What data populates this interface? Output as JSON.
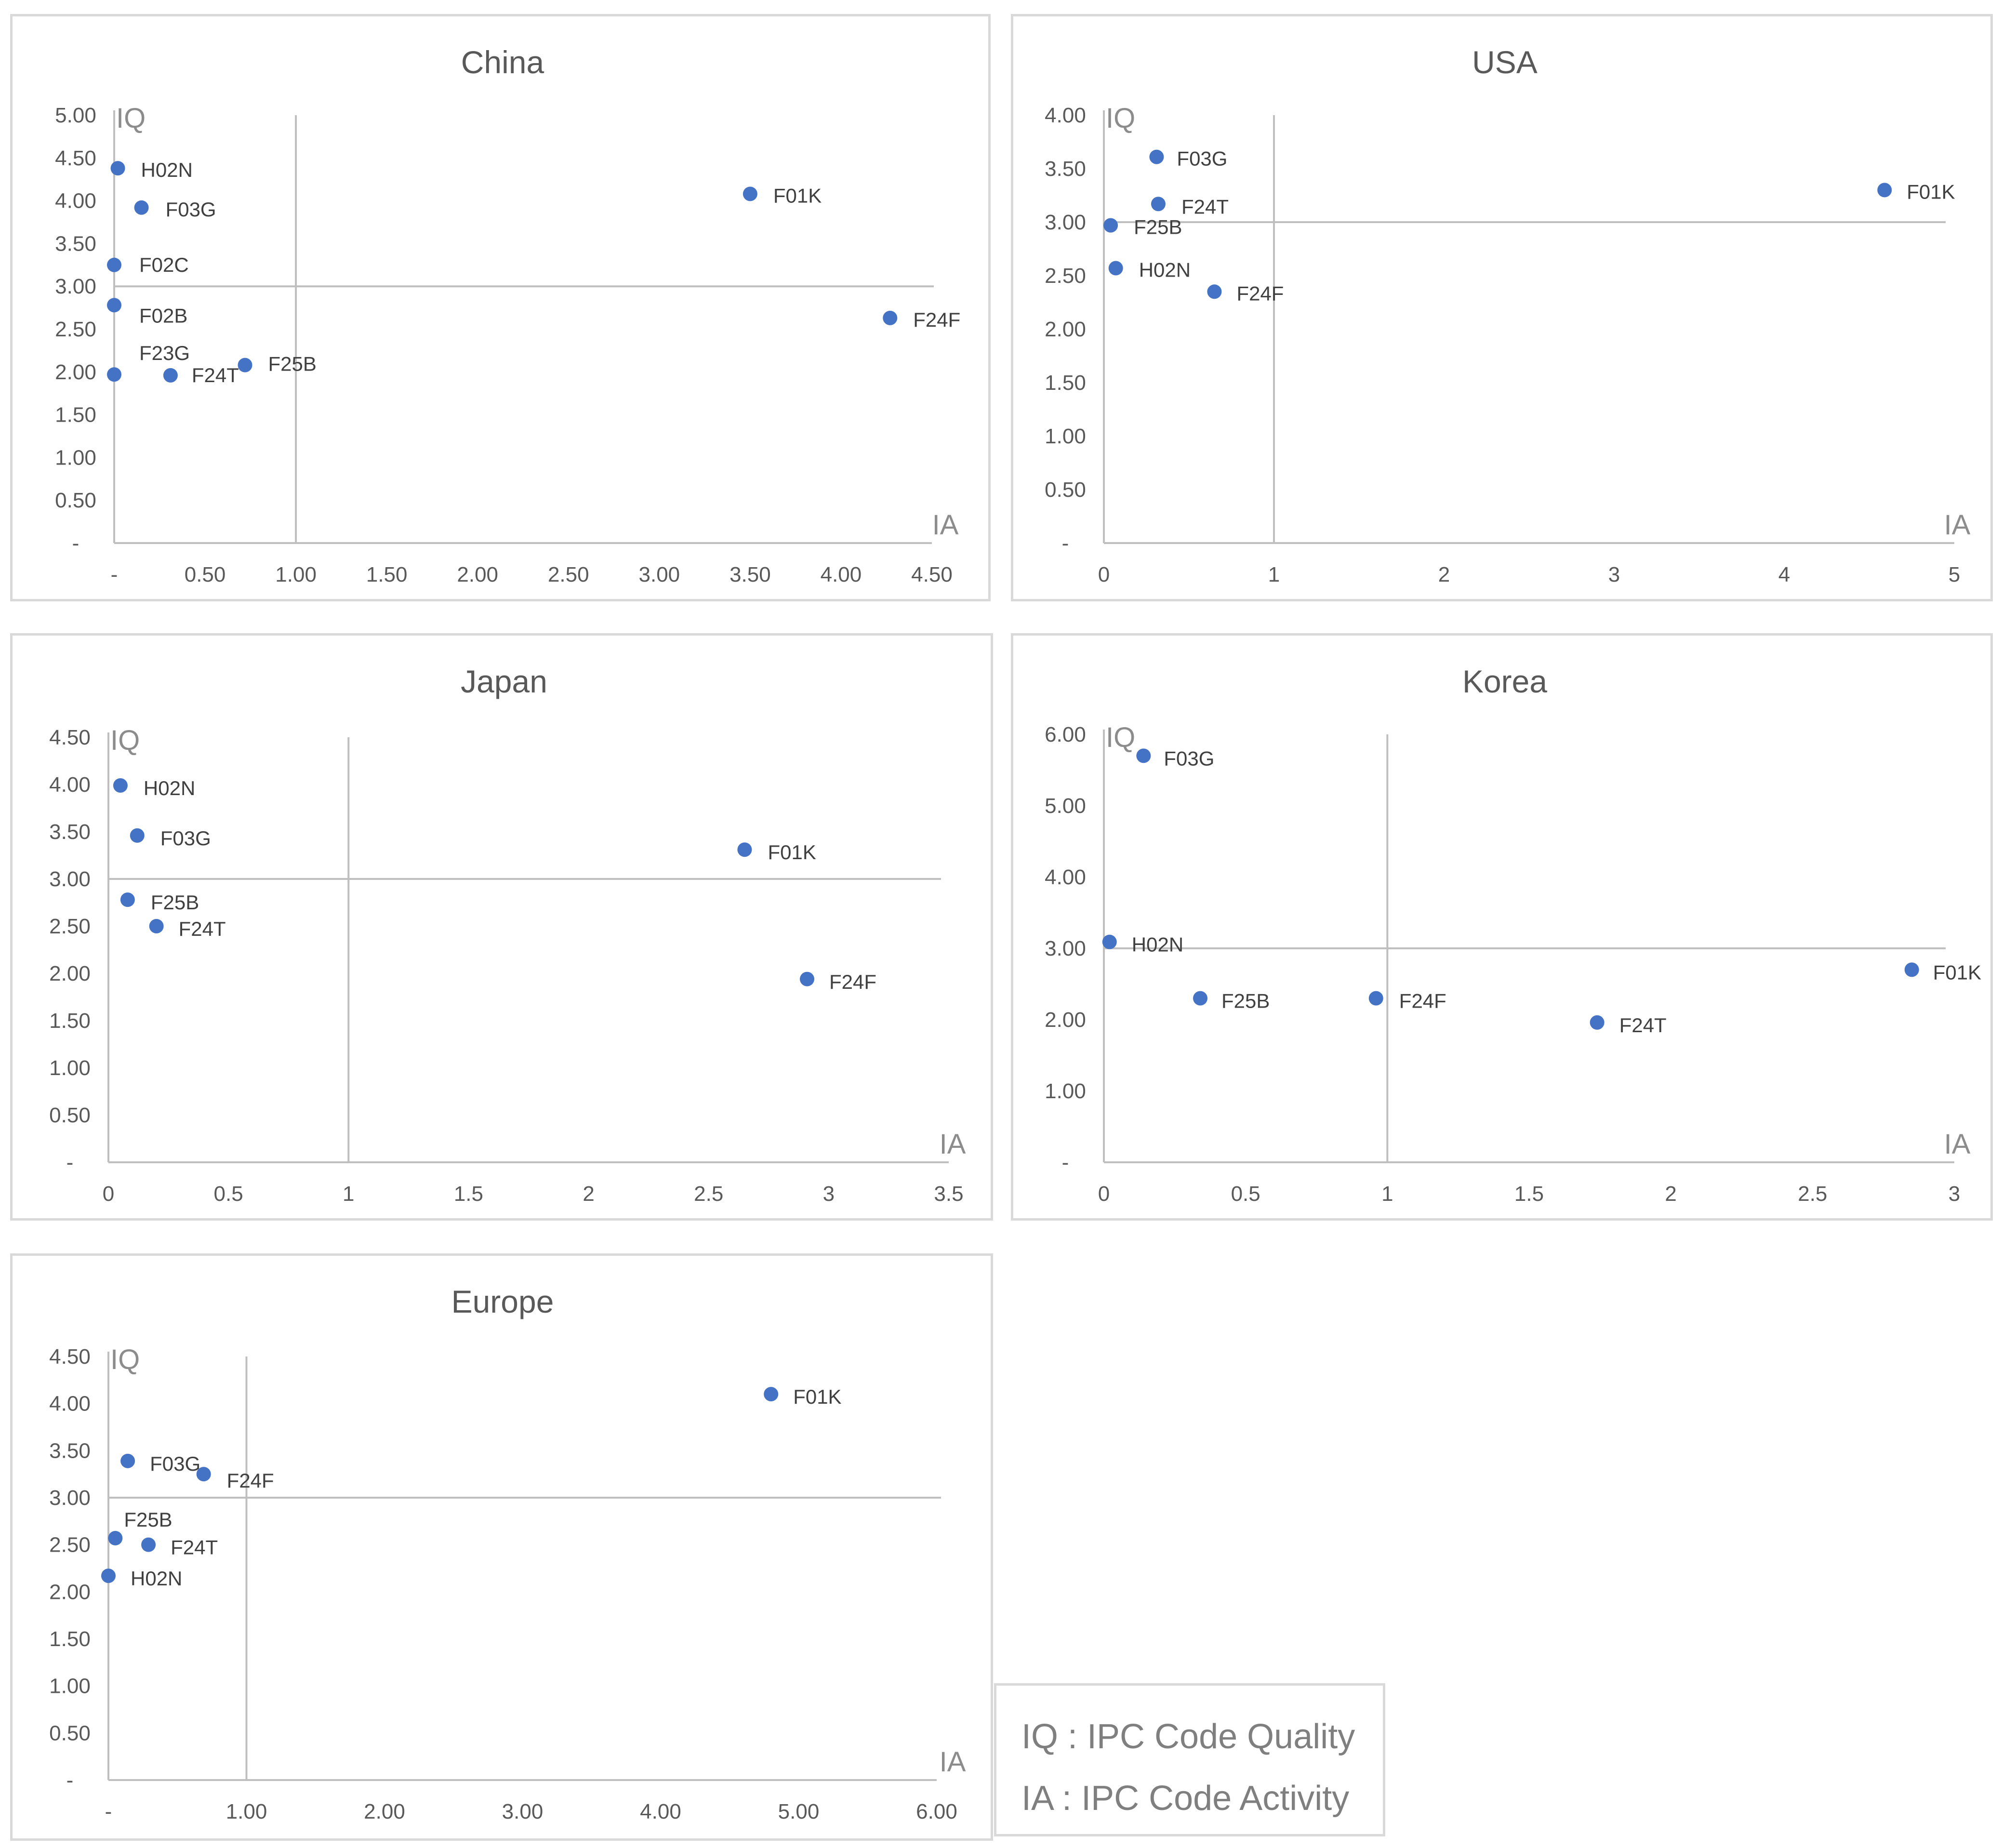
{
  "chart_data": [
    {
      "type": "scatter",
      "title": "China",
      "xlabel": "IA",
      "ylabel": "IQ",
      "xlim": [
        0,
        4.5
      ],
      "ylim": [
        0,
        5
      ],
      "x_ticks": [
        "-",
        "0.50",
        "1.00",
        "1.50",
        "2.00",
        "2.50",
        "3.00",
        "3.50",
        "4.00",
        "4.50"
      ],
      "y_ticks": [
        "-",
        "0.50",
        "1.00",
        "1.50",
        "2.00",
        "2.50",
        "3.00",
        "3.50",
        "4.00",
        "4.50",
        "5.00"
      ],
      "ref_x": 1,
      "ref_y": 3,
      "points": [
        {
          "label": "H02N",
          "x": 0.02,
          "y": 4.38
        },
        {
          "label": "F03G",
          "x": 0.15,
          "y": 3.92
        },
        {
          "label": "F02C",
          "x": 0.0,
          "y": 3.25
        },
        {
          "label": "F02B",
          "x": 0.0,
          "y": 2.78
        },
        {
          "label": "F23G",
          "x": 0.0,
          "y": 1.97
        },
        {
          "label": "F24T",
          "x": 0.31,
          "y": 1.96
        },
        {
          "label": "F25B",
          "x": 0.72,
          "y": 2.08
        },
        {
          "label": "F01K",
          "x": 3.5,
          "y": 4.08
        },
        {
          "label": "F24F",
          "x": 4.27,
          "y": 2.63
        }
      ]
    },
    {
      "type": "scatter",
      "title": "USA",
      "xlabel": "IA",
      "ylabel": "IQ",
      "xlim": [
        0,
        5
      ],
      "ylim": [
        0,
        4
      ],
      "x_ticks": [
        "0",
        "1",
        "2",
        "3",
        "4",
        "5"
      ],
      "y_ticks": [
        "-",
        "0.50",
        "1.00",
        "1.50",
        "2.00",
        "2.50",
        "3.00",
        "3.50",
        "4.00"
      ],
      "ref_x": 1,
      "ref_y": 3,
      "points": [
        {
          "label": "F03G",
          "x": 0.31,
          "y": 3.61
        },
        {
          "label": "F24T",
          "x": 0.32,
          "y": 3.17
        },
        {
          "label": "F25B",
          "x": 0.04,
          "y": 2.97
        },
        {
          "label": "H02N",
          "x": 0.07,
          "y": 2.57
        },
        {
          "label": "F24F",
          "x": 0.65,
          "y": 2.35
        },
        {
          "label": "F01K",
          "x": 4.59,
          "y": 3.3
        }
      ]
    },
    {
      "type": "scatter",
      "title": "Japan",
      "xlabel": "IA",
      "ylabel": "IQ",
      "xlim": [
        0,
        3.5
      ],
      "ylim": [
        0,
        4.5
      ],
      "x_ticks": [
        "0",
        "0.5",
        "1",
        "1.5",
        "2",
        "2.5",
        "3",
        "3.5"
      ],
      "y_ticks": [
        "-",
        "0.50",
        "1.00",
        "1.50",
        "2.00",
        "2.50",
        "3.00",
        "3.50",
        "4.00",
        "4.50"
      ],
      "ref_x": 1,
      "ref_y": 3,
      "points": [
        {
          "label": "H02N",
          "x": 0.05,
          "y": 3.99
        },
        {
          "label": "F03G",
          "x": 0.12,
          "y": 3.46
        },
        {
          "label": "F25B",
          "x": 0.08,
          "y": 2.78
        },
        {
          "label": "F24T",
          "x": 0.2,
          "y": 2.5
        },
        {
          "label": "F01K",
          "x": 2.65,
          "y": 3.31
        },
        {
          "label": "F24F",
          "x": 2.91,
          "y": 1.94
        }
      ]
    },
    {
      "type": "scatter",
      "title": "Korea",
      "xlabel": "IA",
      "ylabel": "IQ",
      "xlim": [
        0,
        3
      ],
      "ylim": [
        0,
        6
      ],
      "x_ticks": [
        "0",
        "0.5",
        "1",
        "1.5",
        "2",
        "2.5",
        "3"
      ],
      "y_ticks": [
        "-",
        "1.00",
        "2.00",
        "3.00",
        "4.00",
        "5.00",
        "6.00"
      ],
      "ref_x": 1,
      "ref_y": 3,
      "points": [
        {
          "label": "F03G",
          "x": 0.14,
          "y": 5.7
        },
        {
          "label": "H02N",
          "x": 0.02,
          "y": 3.09
        },
        {
          "label": "F25B",
          "x": 0.34,
          "y": 2.3
        },
        {
          "label": "F24F",
          "x": 0.96,
          "y": 2.3
        },
        {
          "label": "F24T",
          "x": 1.74,
          "y": 1.96
        },
        {
          "label": "F01K",
          "x": 2.85,
          "y": 2.7
        }
      ]
    },
    {
      "type": "scatter",
      "title": "Europe",
      "xlabel": "IA",
      "ylabel": "IQ",
      "xlim": [
        0,
        6
      ],
      "ylim": [
        0,
        4.5
      ],
      "x_ticks": [
        "-",
        "1.00",
        "2.00",
        "3.00",
        "4.00",
        "5.00",
        "6.00"
      ],
      "y_ticks": [
        "-",
        "0.50",
        "1.00",
        "1.50",
        "2.00",
        "2.50",
        "3.00",
        "3.50",
        "4.00",
        "4.50"
      ],
      "ref_x": 1,
      "ref_y": 3,
      "points": [
        {
          "label": "F01K",
          "x": 4.8,
          "y": 4.1
        },
        {
          "label": "F03G",
          "x": 0.14,
          "y": 3.39
        },
        {
          "label": "F24F",
          "x": 0.69,
          "y": 3.25
        },
        {
          "label": "F25B",
          "x": 0.05,
          "y": 2.57
        },
        {
          "label": "F24T",
          "x": 0.29,
          "y": 2.5
        },
        {
          "label": "H02N",
          "x": 0.0,
          "y": 2.17
        }
      ]
    }
  ],
  "legend": {
    "iq": "IQ : IPC Code Quality",
    "ia": "IA : IPC Code Activity"
  },
  "colors": {
    "point": "#4472c4",
    "axis": "#bfbfbf",
    "text": "#595959"
  }
}
